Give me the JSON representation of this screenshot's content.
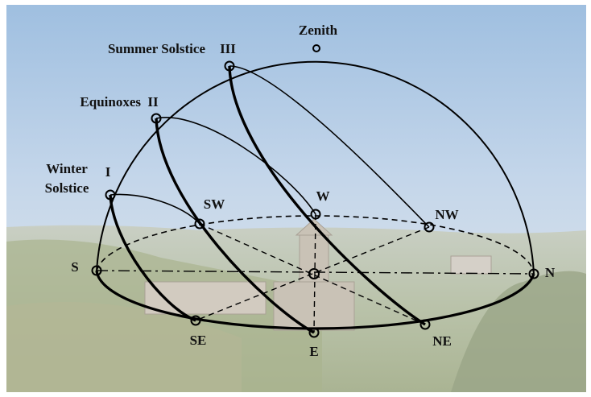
{
  "diagram": {
    "zenith": "Zenith",
    "summer_solstice": {
      "name": "Summer Solstice",
      "numeral": "III"
    },
    "equinoxes": {
      "name": "Equinoxes",
      "numeral": "II"
    },
    "winter_solstice": {
      "name_line1": "Winter",
      "name_line2": "Solstice",
      "numeral": "I"
    },
    "directions": {
      "S": "S",
      "SW": "SW",
      "W": "W",
      "NW": "NW",
      "N": "N",
      "SE": "SE",
      "E": "E",
      "NE": "NE"
    }
  }
}
